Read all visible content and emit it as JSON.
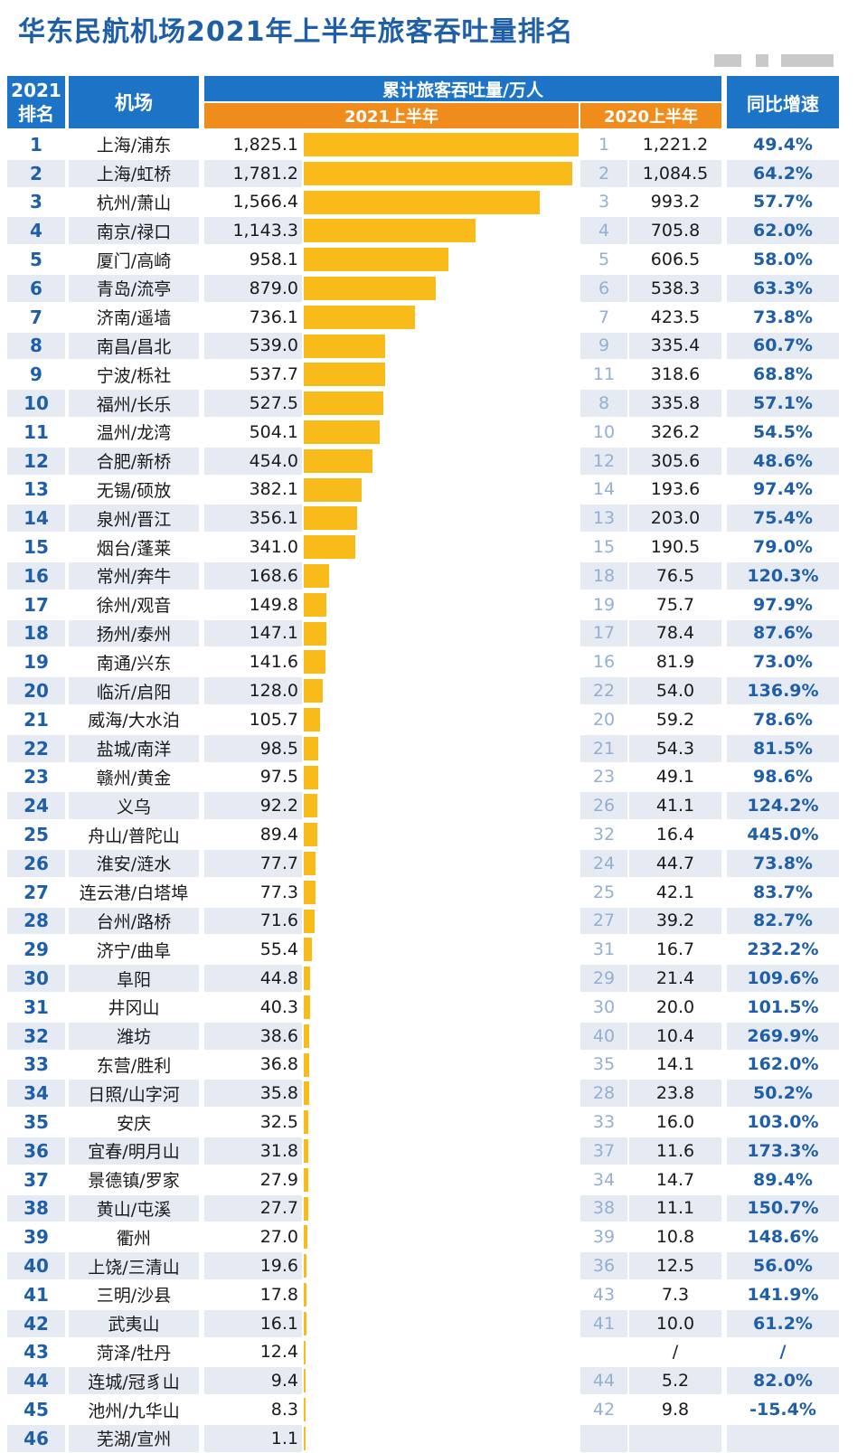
{
  "title": "华东民航机场2021年上半年旅客吞吐量排名",
  "colors": {
    "header_blue": "#1d73c6",
    "header_orange": "#f08c1c",
    "bar": "#f8bb1a",
    "stripe": "#e6ebf3",
    "title": "#1f5fa8"
  },
  "headers": {
    "rank_year": "2021",
    "rank_label": "排名",
    "airport": "机场",
    "cumulative": "累计旅客吞吐量/万人",
    "h1_2021": "2021上半年",
    "h1_2020": "2020上半年",
    "yoy": "同比增速"
  },
  "chart_data": {
    "type": "table",
    "title": "华东民航机场2021年上半年旅客吞吐量排名",
    "unit": "万人",
    "columns": [
      "2021排名",
      "机场",
      "2021上半年",
      "2020排名",
      "2020上半年",
      "同比增速"
    ],
    "bar_max": 1825.1,
    "rows": [
      {
        "rank": "1",
        "name": "上海/浦东",
        "v2021": 1825.1,
        "v2021_text": "1,825.1",
        "rank2020": "1",
        "v2020": "1,221.2",
        "yoy": "49.4%"
      },
      {
        "rank": "2",
        "name": "上海/虹桥",
        "v2021": 1781.2,
        "v2021_text": "1,781.2",
        "rank2020": "2",
        "v2020": "1,084.5",
        "yoy": "64.2%"
      },
      {
        "rank": "3",
        "name": "杭州/萧山",
        "v2021": 1566.4,
        "v2021_text": "1,566.4",
        "rank2020": "3",
        "v2020": "993.2",
        "yoy": "57.7%"
      },
      {
        "rank": "4",
        "name": "南京/禄口",
        "v2021": 1143.3,
        "v2021_text": "1,143.3",
        "rank2020": "4",
        "v2020": "705.8",
        "yoy": "62.0%"
      },
      {
        "rank": "5",
        "name": "厦门/高崎",
        "v2021": 958.1,
        "v2021_text": "958.1",
        "rank2020": "5",
        "v2020": "606.5",
        "yoy": "58.0%"
      },
      {
        "rank": "6",
        "name": "青岛/流亭",
        "v2021": 879.0,
        "v2021_text": "879.0",
        "rank2020": "6",
        "v2020": "538.3",
        "yoy": "63.3%"
      },
      {
        "rank": "7",
        "name": "济南/遥墙",
        "v2021": 736.1,
        "v2021_text": "736.1",
        "rank2020": "7",
        "v2020": "423.5",
        "yoy": "73.8%"
      },
      {
        "rank": "8",
        "name": "南昌/昌北",
        "v2021": 539.0,
        "v2021_text": "539.0",
        "rank2020": "9",
        "v2020": "335.4",
        "yoy": "60.7%"
      },
      {
        "rank": "9",
        "name": "宁波/栎社",
        "v2021": 537.7,
        "v2021_text": "537.7",
        "rank2020": "11",
        "v2020": "318.6",
        "yoy": "68.8%"
      },
      {
        "rank": "10",
        "name": "福州/长乐",
        "v2021": 527.5,
        "v2021_text": "527.5",
        "rank2020": "8",
        "v2020": "335.8",
        "yoy": "57.1%"
      },
      {
        "rank": "11",
        "name": "温州/龙湾",
        "v2021": 504.1,
        "v2021_text": "504.1",
        "rank2020": "10",
        "v2020": "326.2",
        "yoy": "54.5%"
      },
      {
        "rank": "12",
        "name": "合肥/新桥",
        "v2021": 454.0,
        "v2021_text": "454.0",
        "rank2020": "12",
        "v2020": "305.6",
        "yoy": "48.6%"
      },
      {
        "rank": "13",
        "name": "无锡/硕放",
        "v2021": 382.1,
        "v2021_text": "382.1",
        "rank2020": "14",
        "v2020": "193.6",
        "yoy": "97.4%"
      },
      {
        "rank": "14",
        "name": "泉州/晋江",
        "v2021": 356.1,
        "v2021_text": "356.1",
        "rank2020": "13",
        "v2020": "203.0",
        "yoy": "75.4%"
      },
      {
        "rank": "15",
        "name": "烟台/蓬莱",
        "v2021": 341.0,
        "v2021_text": "341.0",
        "rank2020": "15",
        "v2020": "190.5",
        "yoy": "79.0%"
      },
      {
        "rank": "16",
        "name": "常州/奔牛",
        "v2021": 168.6,
        "v2021_text": "168.6",
        "rank2020": "18",
        "v2020": "76.5",
        "yoy": "120.3%"
      },
      {
        "rank": "17",
        "name": "徐州/观音",
        "v2021": 149.8,
        "v2021_text": "149.8",
        "rank2020": "19",
        "v2020": "75.7",
        "yoy": "97.9%"
      },
      {
        "rank": "18",
        "name": "扬州/泰州",
        "v2021": 147.1,
        "v2021_text": "147.1",
        "rank2020": "17",
        "v2020": "78.4",
        "yoy": "87.6%"
      },
      {
        "rank": "19",
        "name": "南通/兴东",
        "v2021": 141.6,
        "v2021_text": "141.6",
        "rank2020": "16",
        "v2020": "81.9",
        "yoy": "73.0%"
      },
      {
        "rank": "20",
        "name": "临沂/启阳",
        "v2021": 128.0,
        "v2021_text": "128.0",
        "rank2020": "22",
        "v2020": "54.0",
        "yoy": "136.9%"
      },
      {
        "rank": "21",
        "name": "威海/大水泊",
        "v2021": 105.7,
        "v2021_text": "105.7",
        "rank2020": "20",
        "v2020": "59.2",
        "yoy": "78.6%"
      },
      {
        "rank": "22",
        "name": "盐城/南洋",
        "v2021": 98.5,
        "v2021_text": "98.5",
        "rank2020": "21",
        "v2020": "54.3",
        "yoy": "81.5%"
      },
      {
        "rank": "23",
        "name": "赣州/黄金",
        "v2021": 97.5,
        "v2021_text": "97.5",
        "rank2020": "23",
        "v2020": "49.1",
        "yoy": "98.6%"
      },
      {
        "rank": "24",
        "name": "义乌",
        "v2021": 92.2,
        "v2021_text": "92.2",
        "rank2020": "26",
        "v2020": "41.1",
        "yoy": "124.2%"
      },
      {
        "rank": "25",
        "name": "舟山/普陀山",
        "v2021": 89.4,
        "v2021_text": "89.4",
        "rank2020": "32",
        "v2020": "16.4",
        "yoy": "445.0%"
      },
      {
        "rank": "26",
        "name": "淮安/涟水",
        "v2021": 77.7,
        "v2021_text": "77.7",
        "rank2020": "24",
        "v2020": "44.7",
        "yoy": "73.8%"
      },
      {
        "rank": "27",
        "name": "连云港/白塔埠",
        "v2021": 77.3,
        "v2021_text": "77.3",
        "rank2020": "25",
        "v2020": "42.1",
        "yoy": "83.7%"
      },
      {
        "rank": "28",
        "name": "台州/路桥",
        "v2021": 71.6,
        "v2021_text": "71.6",
        "rank2020": "27",
        "v2020": "39.2",
        "yoy": "82.7%"
      },
      {
        "rank": "29",
        "name": "济宁/曲阜",
        "v2021": 55.4,
        "v2021_text": "55.4",
        "rank2020": "31",
        "v2020": "16.7",
        "yoy": "232.2%"
      },
      {
        "rank": "30",
        "name": "阜阳",
        "v2021": 44.8,
        "v2021_text": "44.8",
        "rank2020": "29",
        "v2020": "21.4",
        "yoy": "109.6%"
      },
      {
        "rank": "31",
        "name": "井冈山",
        "v2021": 40.3,
        "v2021_text": "40.3",
        "rank2020": "30",
        "v2020": "20.0",
        "yoy": "101.5%"
      },
      {
        "rank": "32",
        "name": "潍坊",
        "v2021": 38.6,
        "v2021_text": "38.6",
        "rank2020": "40",
        "v2020": "10.4",
        "yoy": "269.9%"
      },
      {
        "rank": "33",
        "name": "东营/胜利",
        "v2021": 36.8,
        "v2021_text": "36.8",
        "rank2020": "35",
        "v2020": "14.1",
        "yoy": "162.0%"
      },
      {
        "rank": "34",
        "name": "日照/山字河",
        "v2021": 35.8,
        "v2021_text": "35.8",
        "rank2020": "28",
        "v2020": "23.8",
        "yoy": "50.2%"
      },
      {
        "rank": "35",
        "name": "安庆",
        "v2021": 32.5,
        "v2021_text": "32.5",
        "rank2020": "33",
        "v2020": "16.0",
        "yoy": "103.0%"
      },
      {
        "rank": "36",
        "name": "宜春/明月山",
        "v2021": 31.8,
        "v2021_text": "31.8",
        "rank2020": "37",
        "v2020": "11.6",
        "yoy": "173.3%"
      },
      {
        "rank": "37",
        "name": "景德镇/罗家",
        "v2021": 27.9,
        "v2021_text": "27.9",
        "rank2020": "34",
        "v2020": "14.7",
        "yoy": "89.4%"
      },
      {
        "rank": "38",
        "name": "黄山/屯溪",
        "v2021": 27.7,
        "v2021_text": "27.7",
        "rank2020": "38",
        "v2020": "11.1",
        "yoy": "150.7%"
      },
      {
        "rank": "39",
        "name": "衢州",
        "v2021": 27.0,
        "v2021_text": "27.0",
        "rank2020": "39",
        "v2020": "10.8",
        "yoy": "148.6%"
      },
      {
        "rank": "40",
        "name": "上饶/三清山",
        "v2021": 19.6,
        "v2021_text": "19.6",
        "rank2020": "36",
        "v2020": "12.5",
        "yoy": "56.0%"
      },
      {
        "rank": "41",
        "name": "三明/沙县",
        "v2021": 17.8,
        "v2021_text": "17.8",
        "rank2020": "43",
        "v2020": "7.3",
        "yoy": "141.9%"
      },
      {
        "rank": "42",
        "name": "武夷山",
        "v2021": 16.1,
        "v2021_text": "16.1",
        "rank2020": "41",
        "v2020": "10.0",
        "yoy": "61.2%"
      },
      {
        "rank": "43",
        "name": "菏泽/牡丹",
        "v2021": 12.4,
        "v2021_text": "12.4",
        "rank2020": "",
        "v2020": "/",
        "yoy": "/"
      },
      {
        "rank": "44",
        "name": "连城/冠豸山",
        "v2021": 9.4,
        "v2021_text": "9.4",
        "rank2020": "44",
        "v2020": "5.2",
        "yoy": "82.0%"
      },
      {
        "rank": "45",
        "name": "池州/九华山",
        "v2021": 8.3,
        "v2021_text": "8.3",
        "rank2020": "42",
        "v2020": "9.8",
        "yoy": "-15.4%"
      },
      {
        "rank": "46",
        "name": "芜湖/宣州",
        "v2021": 1.1,
        "v2021_text": "1.1",
        "rank2020": "",
        "v2020": "",
        "yoy": ""
      }
    ]
  }
}
